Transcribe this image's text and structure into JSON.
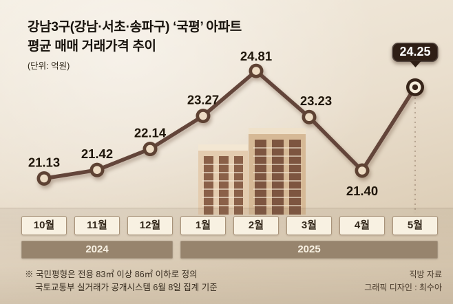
{
  "header": {
    "title_line1": "강남3구(강남·서초·송파구) ‘국평’ 아파트",
    "title_line2": "평균 매매 거래가격 추이",
    "unit": "(단위: 억원)"
  },
  "chart_data": {
    "type": "line",
    "title": "강남3구 국평 아파트 평균 매매 거래가격 추이",
    "unit": "억원",
    "categories": [
      "10월",
      "11월",
      "12월",
      "1월",
      "2월",
      "3월",
      "4월",
      "5월"
    ],
    "values": [
      21.13,
      21.42,
      22.14,
      23.27,
      24.81,
      23.23,
      21.4,
      24.25
    ],
    "value_labels": [
      "21.13",
      "21.42",
      "22.14",
      "23.27",
      "24.81",
      "23.23",
      "21.40",
      "24.25"
    ],
    "highlight_index": 7,
    "highlight_label": "24.25",
    "ylim": [
      21.0,
      25.2
    ],
    "grid": false,
    "legend": "none",
    "year_groups": [
      {
        "label": "2024",
        "span": 3
      },
      {
        "label": "2025",
        "span": 5
      }
    ]
  },
  "colors": {
    "line": "#63453a",
    "marker_outer": "#5e4233",
    "marker_inner": "#eddcc4",
    "callout_bg": "#2e1e15",
    "year_band": "#97846d",
    "month_box_bg": "#f8f1e2"
  },
  "footer": {
    "note1": "※ 국민평형은 전용 83㎡ 이상 86㎡ 이하로 정의",
    "note2": "국토교통부 실거래가 공개시스템 6월 8일 집계 기준",
    "source": "직방 자료",
    "credit": "그래픽 디자인 : 최수아"
  }
}
